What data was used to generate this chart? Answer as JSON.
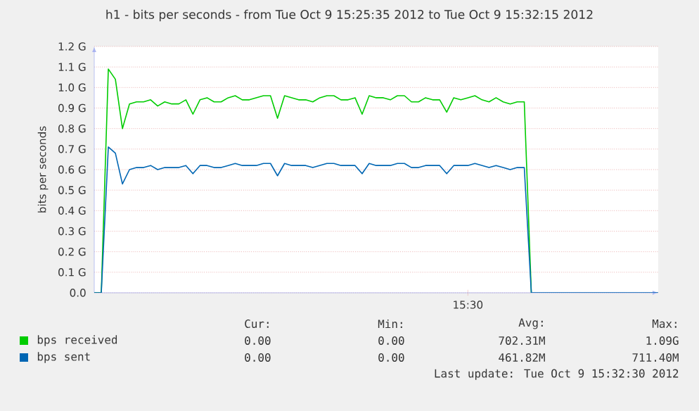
{
  "chart_data": {
    "type": "line",
    "title": "h1 - bits per seconds - from Tue Oct 9 15:25:35 2012 to Tue Oct 9 15:32:15 2012",
    "ylabel": "bits per seconds",
    "categories": [
      null,
      null,
      null,
      null,
      null,
      null,
      null,
      null,
      null,
      null,
      null,
      null,
      null,
      null,
      null,
      null,
      null,
      null,
      null,
      null,
      null,
      null,
      null,
      null,
      null,
      null,
      null,
      null,
      null,
      null,
      null,
      null,
      null,
      null,
      null,
      null,
      null,
      null,
      null,
      null,
      null,
      null,
      null,
      null,
      null,
      null,
      null,
      null,
      null,
      null,
      null,
      null,
      null,
      "15:30",
      null,
      null,
      null,
      null,
      null,
      null,
      null,
      null,
      null,
      null,
      null,
      null,
      null,
      null,
      null,
      null,
      null,
      null,
      null,
      null,
      null,
      null,
      null,
      null,
      null,
      null,
      null
    ],
    "series": [
      {
        "name": "bps received",
        "color": "#00cc00",
        "values": [
          0,
          0,
          1.09,
          1.04,
          0.8,
          0.92,
          0.93,
          0.93,
          0.94,
          0.91,
          0.93,
          0.92,
          0.92,
          0.94,
          0.87,
          0.94,
          0.95,
          0.93,
          0.93,
          0.95,
          0.96,
          0.94,
          0.94,
          0.95,
          0.96,
          0.96,
          0.85,
          0.96,
          0.95,
          0.94,
          0.94,
          0.93,
          0.95,
          0.96,
          0.96,
          0.94,
          0.94,
          0.95,
          0.87,
          0.96,
          0.95,
          0.95,
          0.94,
          0.96,
          0.96,
          0.93,
          0.93,
          0.95,
          0.94,
          0.94,
          0.88,
          0.95,
          0.94,
          0.95,
          0.96,
          0.94,
          0.93,
          0.95,
          0.93,
          0.92,
          0.93,
          0.93,
          0,
          null,
          null,
          null,
          null,
          null,
          null,
          null,
          null,
          null,
          null,
          null,
          null,
          null,
          null,
          null,
          null,
          null,
          null
        ]
      },
      {
        "name": "bps sent",
        "color": "#0066b3",
        "values": [
          0,
          0,
          0.71,
          0.68,
          0.53,
          0.6,
          0.61,
          0.61,
          0.62,
          0.6,
          0.61,
          0.61,
          0.61,
          0.62,
          0.58,
          0.62,
          0.62,
          0.61,
          0.61,
          0.62,
          0.63,
          0.62,
          0.62,
          0.62,
          0.63,
          0.63,
          0.57,
          0.63,
          0.62,
          0.62,
          0.62,
          0.61,
          0.62,
          0.63,
          0.63,
          0.62,
          0.62,
          0.62,
          0.58,
          0.63,
          0.62,
          0.62,
          0.62,
          0.63,
          0.63,
          0.61,
          0.61,
          0.62,
          0.62,
          0.62,
          0.58,
          0.62,
          0.62,
          0.62,
          0.63,
          0.62,
          0.61,
          0.62,
          0.61,
          0.6,
          0.61,
          0.61,
          0,
          0,
          0,
          0,
          0,
          0,
          0,
          0,
          0,
          0,
          0,
          0,
          0,
          0,
          0,
          0,
          0,
          0,
          0
        ]
      }
    ],
    "ylim": [
      0,
      1.2
    ],
    "yticks": [
      {
        "value": 0,
        "label": "0.0"
      },
      {
        "value": 0.1,
        "label": "0.1 G"
      },
      {
        "value": 0.2,
        "label": "0.2 G"
      },
      {
        "value": 0.3,
        "label": "0.3 G"
      },
      {
        "value": 0.4,
        "label": "0.4 G"
      },
      {
        "value": 0.5,
        "label": "0.5 G"
      },
      {
        "value": 0.6,
        "label": "0.6 G"
      },
      {
        "value": 0.7,
        "label": "0.7 G"
      },
      {
        "value": 0.8,
        "label": "0.8 G"
      },
      {
        "value": 0.9,
        "label": "0.9 G"
      },
      {
        "value": 1.0,
        "label": "1.0 G"
      },
      {
        "value": 1.1,
        "label": "1.1 G"
      },
      {
        "value": 1.2,
        "label": "1.2 G"
      }
    ],
    "grid": "y",
    "legend": "bottom",
    "annotations": [
      "Cur:",
      "Min:",
      "Avg:",
      "Max:",
      "0.00",
      "0.00",
      "702.31M",
      "1.09G",
      "0.00",
      "0.00",
      "461.82M",
      "711.40M",
      "Last update: Tue Oct 9 15:32:30 2012"
    ]
  }
}
